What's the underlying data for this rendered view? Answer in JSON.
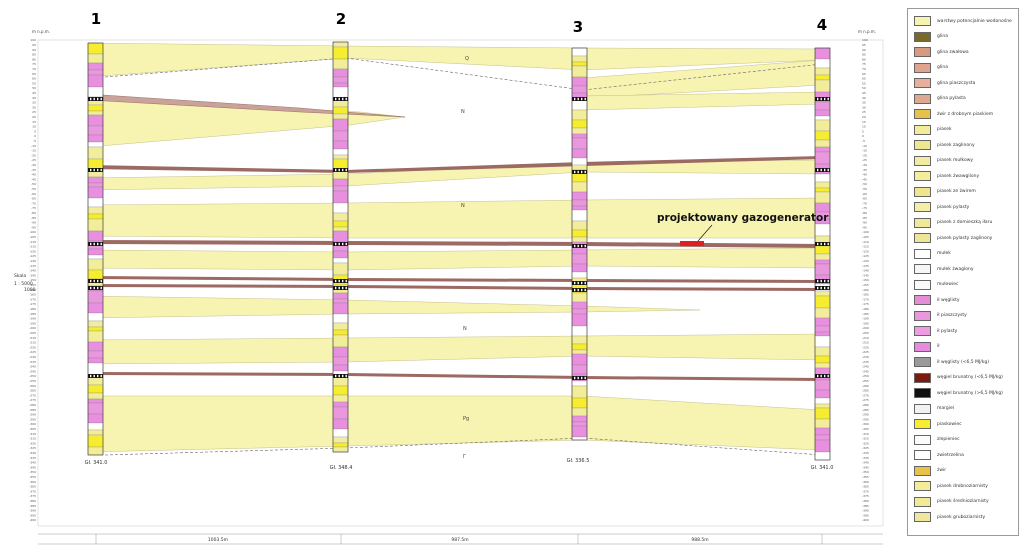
{
  "boreholes": [
    {
      "number": "1",
      "depth": "Gł. 341.0"
    },
    {
      "number": "2",
      "depth": "Gł. 348.4"
    },
    {
      "number": "3",
      "depth": "Gł. 336.5"
    },
    {
      "number": "4",
      "depth": "Gł. 341.0"
    }
  ],
  "axis_unit": "m n.p.m.",
  "depth_ticks": [
    "100",
    "95",
    "90",
    "85",
    "80",
    "75",
    "70",
    "65",
    "60",
    "55",
    "50",
    "45",
    "40",
    "35",
    "30",
    "25",
    "20",
    "15",
    "10",
    "5",
    "0",
    "-5",
    "-10",
    "-15",
    "-20",
    "-25",
    "-30",
    "-35",
    "-40",
    "-45",
    "-50",
    "-55",
    "-60",
    "-65",
    "-70",
    "-75",
    "-80",
    "-85",
    "-90",
    "-95",
    "-100",
    "-105",
    "-110",
    "-115",
    "-120",
    "-125",
    "-130",
    "-135",
    "-140",
    "-145",
    "-150",
    "-155",
    "-160",
    "-165",
    "-170",
    "-175",
    "-180",
    "-185",
    "-190",
    "-195",
    "-200",
    "-205",
    "-210",
    "-215",
    "-220",
    "-225",
    "-230",
    "-235",
    "-240",
    "-245",
    "-250",
    "-255",
    "-260",
    "-265",
    "-270",
    "-275",
    "-280",
    "-285",
    "-290",
    "-295",
    "-300",
    "-305",
    "-310",
    "-315",
    "-320",
    "-325",
    "-330",
    "-335",
    "-340",
    "-345",
    "-350",
    "-355",
    "-360",
    "-365",
    "-370",
    "-375",
    "-380",
    "-385",
    "-390",
    "-395",
    "-400"
  ],
  "scale": {
    "label": "Skala",
    "v": "1 : 5000",
    "h": "1000"
  },
  "strat_labels": [
    "Q",
    "N",
    "N",
    "N",
    "Pg",
    "Γ"
  ],
  "annotation": "projektowany gazogenerator",
  "distances": [
    "1003.5m",
    "987.5m",
    "988.5m"
  ],
  "legend": [
    {
      "label": "warstwy potencjalnie wodonośne",
      "color": "#f7f3b0"
    },
    {
      "label": "glina",
      "color": "#7a6a2a"
    },
    {
      "label": "glina zwałowa",
      "color": "#d99a82"
    },
    {
      "label": "glina",
      "color": "#e0a48e"
    },
    {
      "label": "glina piaszczysta",
      "color": "#e6b09c"
    },
    {
      "label": "glina pylasta",
      "color": "#dda894"
    },
    {
      "label": "żwir z drobnym piaskiem",
      "color": "#e6c24a"
    },
    {
      "label": "piasek",
      "color": "#f2ed9a"
    },
    {
      "label": "piasek zaglinony",
      "color": "#eee990"
    },
    {
      "label": "piasek mułkowy",
      "color": "#f1eca4"
    },
    {
      "label": "piasek żwawgliony",
      "color": "#f3ee9c"
    },
    {
      "label": "piasek ze żwirem",
      "color": "#efe58c"
    },
    {
      "label": "piasek pylasty",
      "color": "#f3efa8"
    },
    {
      "label": "piasek z domieszką iłaru",
      "color": "#f0ea98"
    },
    {
      "label": "piasek pylasty zaglinony",
      "color": "#eee696"
    },
    {
      "label": "mułek",
      "color": "#ffffff"
    },
    {
      "label": "mułek żwaglony",
      "color": "#f6f6f6"
    },
    {
      "label": "mułowiec",
      "color": "#fafafa"
    },
    {
      "label": "ił węglisty",
      "color": "#e58ed8"
    },
    {
      "label": "ił piaszczysty",
      "color": "#ea98de"
    },
    {
      "label": "ił pylasty",
      "color": "#ee9ce2"
    },
    {
      "label": "ił",
      "color": "#e88ae0"
    },
    {
      "label": "ił węglisty (<6,5 MJ/kg)",
      "color": "#9a9a9a"
    },
    {
      "label": "węgiel brunatny (<6,5 MJ/kg)",
      "color": "#7a1a10"
    },
    {
      "label": "węgiel brunatny (>6,5 MJ/kg)",
      "color": "#111111"
    },
    {
      "label": "margiel",
      "color": "#f2f2f2"
    },
    {
      "label": "piaskowiec",
      "color": "#f6ec30"
    },
    {
      "label": "zlepieniec",
      "color": "#fbfbfb"
    },
    {
      "label": "zwietrzelina",
      "color": "#ffffff"
    },
    {
      "label": "żwir",
      "color": "#e8c24a"
    },
    {
      "label": "piasek drobnoziarnisty",
      "color": "#f3ed9a"
    },
    {
      "label": "piasek średnioziarnisty",
      "color": "#f1ea96"
    },
    {
      "label": "piasek gruboziarnisty",
      "color": "#efe7a0"
    }
  ],
  "colors": {
    "sand": "#f7f3b0",
    "clay_band": "#c9a29a",
    "coal_band": "#8a5a52",
    "column_pink": "#e98fe0",
    "marker": "#e02020"
  }
}
